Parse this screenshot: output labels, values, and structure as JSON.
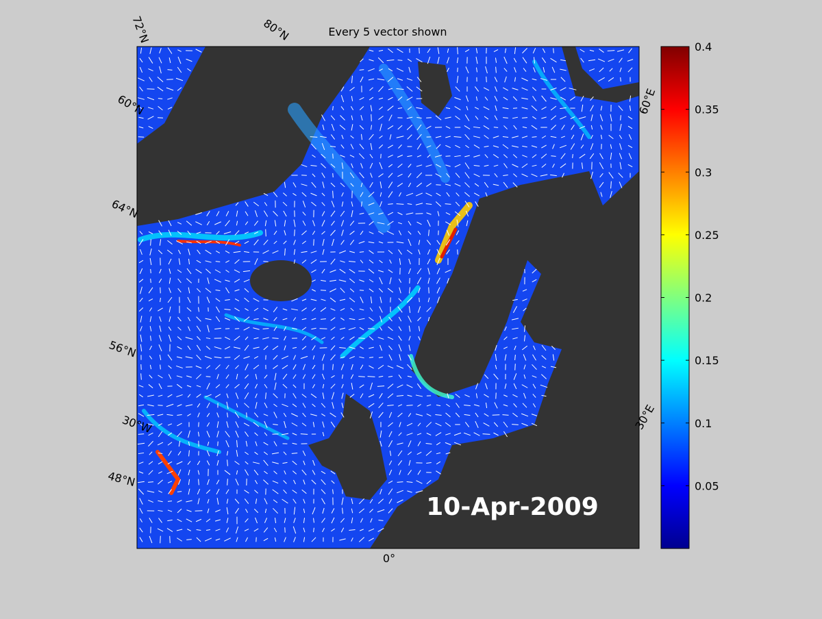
{
  "title": "Every 5 vector shown",
  "date": "10-Apr-2009",
  "graticule_labels": [
    "72°N",
    "80°N",
    "60°N",
    "64°N",
    "56°N",
    "30°W",
    "48°N",
    "0°",
    "30°E",
    "60°E"
  ],
  "colorbar": {
    "lim": [
      0,
      0.4
    ],
    "ticks": [
      0.05,
      0.1,
      0.15,
      0.2,
      0.25,
      0.3,
      0.35,
      0.4
    ]
  }
}
